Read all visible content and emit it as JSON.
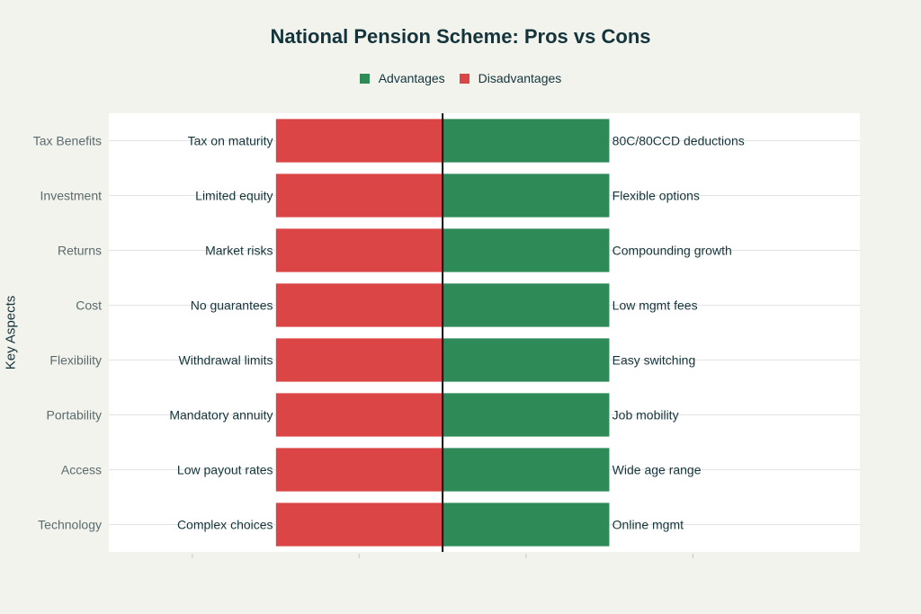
{
  "chart_data": {
    "type": "bar",
    "orientation": "horizontal-diverging",
    "title": "National Pension Scheme: Pros vs Cons",
    "ylabel": "Key Aspects",
    "xlabel": "",
    "legend": {
      "placement": "top-center",
      "entries": [
        "Advantages",
        "Disadvantages"
      ]
    },
    "categories": [
      "Tax Benefits",
      "Investment",
      "Returns",
      "Cost",
      "Flexibility",
      "Portability",
      "Access",
      "Technology"
    ],
    "xlim": [
      -2,
      2.5
    ],
    "grid": true,
    "series": [
      {
        "name": "Advantages",
        "color": "#2e8b57",
        "values": [
          1,
          1,
          1,
          1,
          1,
          1,
          1,
          1
        ],
        "labels": [
          "80C/80CCD deductions",
          "Flexible options",
          "Compounding growth",
          "Low mgmt fees",
          "Easy switching",
          "Job mobility",
          "Wide age range",
          "Online mgmt"
        ]
      },
      {
        "name": "Disadvantages",
        "color": "#db4545",
        "values": [
          -1,
          -1,
          -1,
          -1,
          -1,
          -1,
          -1,
          -1
        ],
        "labels": [
          "Tax on maturity",
          "Limited equity",
          "Market risks",
          "No guarantees",
          "Withdrawal limits",
          "Mandatory annuity",
          "Low payout rates",
          "Complex choices"
        ]
      }
    ]
  }
}
